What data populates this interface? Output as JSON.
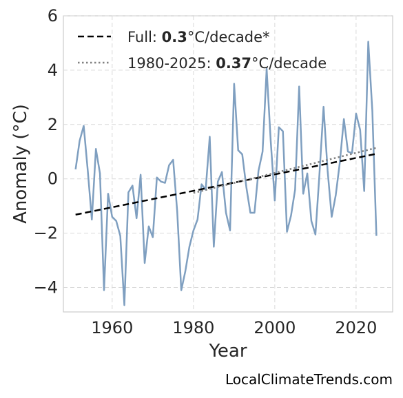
{
  "chart_data": {
    "type": "line",
    "xlabel": "Year",
    "ylabel": "Anomaly (°C)",
    "xlim": [
      1948,
      2029
    ],
    "ylim": [
      -4.9,
      6
    ],
    "xticks": [
      1960,
      1980,
      2000,
      2020
    ],
    "yticks": [
      -4,
      -2,
      0,
      2,
      4,
      6
    ],
    "ytick_labels": [
      "−4",
      "−2",
      "0",
      "2",
      "4",
      "6"
    ],
    "grid": true,
    "legend_position": "top-left",
    "series": [
      {
        "type": "line",
        "color": "#7f9fc0",
        "x": [
          1951,
          1952,
          1953,
          1954,
          1955,
          1956,
          1957,
          1958,
          1959,
          1960,
          1961,
          1962,
          1963,
          1964,
          1965,
          1966,
          1967,
          1968,
          1969,
          1970,
          1971,
          1972,
          1973,
          1974,
          1975,
          1976,
          1977,
          1978,
          1979,
          1980,
          1981,
          1982,
          1983,
          1984,
          1985,
          1986,
          1987,
          1988,
          1989,
          1990,
          1991,
          1992,
          1993,
          1994,
          1995,
          1996,
          1997,
          1998,
          1999,
          2000,
          2001,
          2002,
          2003,
          2004,
          2005,
          2006,
          2007,
          2008,
          2009,
          2010,
          2011,
          2012,
          2013,
          2014,
          2015,
          2016,
          2017,
          2018,
          2019,
          2020,
          2021,
          2022,
          2023,
          2024,
          2025
        ],
        "values": [
          0.35,
          1.4,
          1.95,
          0.3,
          -1.5,
          1.1,
          0.2,
          -4.1,
          -0.55,
          -1.4,
          -1.55,
          -2.1,
          -4.65,
          -0.5,
          -0.25,
          -1.45,
          0.15,
          -3.1,
          -1.75,
          -2.15,
          0.05,
          -0.1,
          -0.15,
          0.5,
          0.7,
          -1.2,
          -4.1,
          -3.4,
          -2.5,
          -1.9,
          -1.5,
          -0.2,
          -0.4,
          1.55,
          -2.5,
          -0.1,
          0.25,
          -1.25,
          -1.9,
          3.5,
          1.05,
          0.9,
          -0.3,
          -1.25,
          -1.25,
          0.3,
          1.0,
          4.05,
          1.4,
          -0.8,
          1.9,
          1.75,
          -1.95,
          -1.35,
          -0.4,
          3.4,
          -0.55,
          0.2,
          -1.55,
          -2.05,
          0.2,
          2.65,
          0.3,
          -1.4,
          -0.6,
          0.6,
          2.2,
          1.0,
          0.95,
          2.4,
          1.8,
          -0.45,
          5.05,
          2.5,
          -2.1
        ]
      },
      {
        "type": "line",
        "style": "dashed",
        "color": "#000000",
        "x": [
          1951,
          2025
        ],
        "values": [
          -1.32,
          0.92
        ]
      },
      {
        "type": "line",
        "style": "dotted",
        "color": "#808080",
        "x": [
          1980,
          2025
        ],
        "values": [
          -0.52,
          1.14
        ]
      }
    ],
    "legend": [
      {
        "prefix": "Full: ",
        "value": "0.3",
        "suffix": "°C/decade*",
        "style": "dashed",
        "color": "#000000"
      },
      {
        "prefix": "1980-2025: ",
        "value": "0.37",
        "suffix": "°C/decade",
        "style": "dotted",
        "color": "#808080"
      }
    ]
  },
  "credit": "LocalClimateTrends.com"
}
